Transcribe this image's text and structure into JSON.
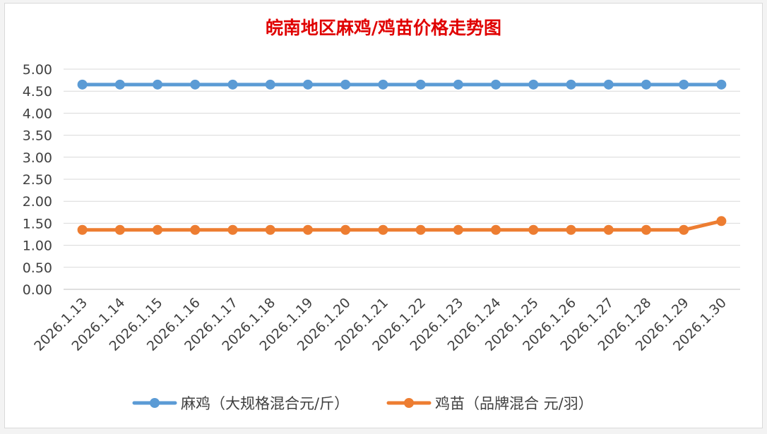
{
  "chart_data": {
    "type": "line",
    "title": "皖南地区麻鸡/鸡苗价格走势图",
    "categories": [
      "2026.1.13",
      "2026.1.14",
      "2026.1.15",
      "2026.1.16",
      "2026.1.17",
      "2026.1.18",
      "2026.1.19",
      "2026.1.20",
      "2026.1.21",
      "2026.1.22",
      "2026.1.23",
      "2026.1.24",
      "2026.1.25",
      "2026.1.26",
      "2026.1.27",
      "2026.1.28",
      "2026.1.29",
      "2026.1.30"
    ],
    "y_ticks": [
      "0.00",
      "0.50",
      "1.00",
      "1.50",
      "2.00",
      "2.50",
      "3.00",
      "3.50",
      "4.00",
      "4.50",
      "5.00"
    ],
    "ylim": [
      0,
      5
    ],
    "grid": true,
    "legend_position": "bottom",
    "series": [
      {
        "name": "麻鸡（大规格混合元/斤）",
        "color": "#5b9bd5",
        "values": [
          4.65,
          4.65,
          4.65,
          4.65,
          4.65,
          4.65,
          4.65,
          4.65,
          4.65,
          4.65,
          4.65,
          4.65,
          4.65,
          4.65,
          4.65,
          4.65,
          4.65,
          4.65
        ]
      },
      {
        "name": "鸡苗（品牌混合 元/羽）",
        "color": "#ed7d31",
        "values": [
          1.35,
          1.35,
          1.35,
          1.35,
          1.35,
          1.35,
          1.35,
          1.35,
          1.35,
          1.35,
          1.35,
          1.35,
          1.35,
          1.35,
          1.35,
          1.35,
          1.35,
          1.55
        ]
      }
    ]
  }
}
